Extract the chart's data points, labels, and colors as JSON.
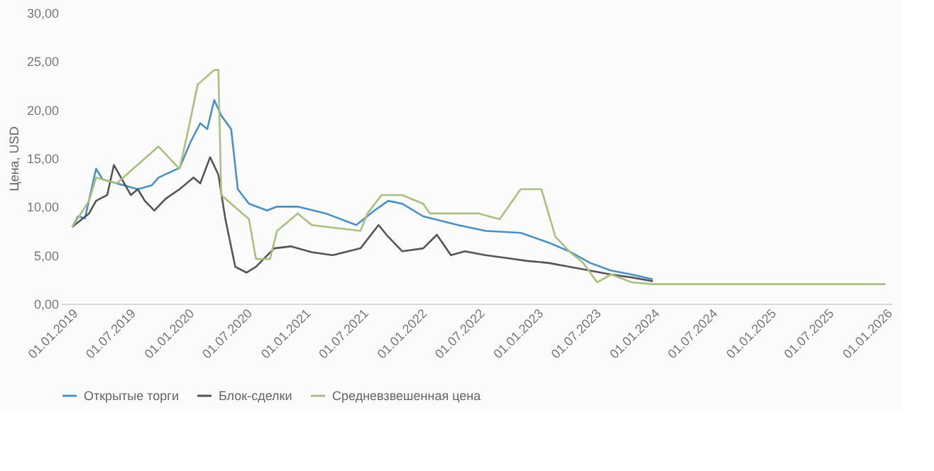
{
  "chart_data": {
    "type": "line",
    "ylabel": "Цена, USD",
    "xlim": [
      "2018-12-01",
      "2026-01-20"
    ],
    "xticks": [
      {
        "value": "2019-01-01",
        "label": "01.01.2019"
      },
      {
        "value": "2019-07-01",
        "label": "01.07.2019"
      },
      {
        "value": "2020-01-01",
        "label": "01.01.2020"
      },
      {
        "value": "2020-07-01",
        "label": "01.07.2020"
      },
      {
        "value": "2021-01-01",
        "label": "01.01.2021"
      },
      {
        "value": "2021-07-01",
        "label": "01.07.2021"
      },
      {
        "value": "2022-01-01",
        "label": "01.01.2022"
      },
      {
        "value": "2022-07-01",
        "label": "01.07.2022"
      },
      {
        "value": "2023-01-01",
        "label": "01.01.2023"
      },
      {
        "value": "2023-07-01",
        "label": "01.07.2023"
      },
      {
        "value": "2024-01-01",
        "label": "01.01.2024"
      },
      {
        "value": "2024-07-01",
        "label": "01.07.2024"
      },
      {
        "value": "2025-01-01",
        "label": "01.01.2025"
      },
      {
        "value": "2025-07-01",
        "label": "01.07.2025"
      },
      {
        "value": "2026-01-01",
        "label": "01.01.2026"
      }
    ],
    "ylim": [
      0,
      30
    ],
    "yticks": [
      {
        "value": 0,
        "label": "0,00"
      },
      {
        "value": 5,
        "label": "5,00"
      },
      {
        "value": 10,
        "label": "10,00"
      },
      {
        "value": 15,
        "label": "15,00"
      },
      {
        "value": 20,
        "label": "20,00"
      },
      {
        "value": 25,
        "label": "25,00"
      },
      {
        "value": 30,
        "label": "30,00"
      }
    ],
    "grid": false,
    "legend": "bottom",
    "marker": "none",
    "line_style": "solid",
    "series": [
      {
        "name": "Открытые торги",
        "color": "#4a90c4",
        "x": [
          "2019-01-05",
          "2019-01-23",
          "2019-02-14",
          "2019-03-21",
          "2019-04-11",
          "2019-05-25",
          "2019-06-16",
          "2019-07-30",
          "2019-09-12",
          "2019-10-03",
          "2019-12-08",
          "2020-01-12",
          "2020-02-11",
          "2020-03-04",
          "2020-03-26",
          "2020-04-17",
          "2020-05-18",
          "2020-06-08",
          "2020-07-13",
          "2020-09-08",
          "2020-10-09",
          "2020-12-13",
          "2021-03-11",
          "2021-06-15",
          "2021-08-11",
          "2021-09-23",
          "2021-11-06",
          "2022-01-11",
          "2022-04-30",
          "2022-07-26",
          "2022-11-13",
          "2023-02-08",
          "2023-04-14",
          "2023-06-19",
          "2023-08-24",
          "2023-10-28",
          "2024-01-02"
        ],
        "values": [
          7.9,
          9,
          8.8,
          13.9,
          12.8,
          12.4,
          12.2,
          11.8,
          12.2,
          13,
          14,
          16.7,
          18.6,
          18,
          21,
          19.4,
          18,
          11.8,
          10.3,
          9.6,
          10,
          10,
          9.3,
          8.1,
          9.6,
          10.6,
          10.3,
          9,
          8.1,
          7.5,
          7.3,
          6.3,
          5.4,
          4.2,
          3.4,
          3,
          2.5
        ]
      },
      {
        "name": "Блок-сделки",
        "color": "#555555",
        "x": [
          "2019-01-05",
          "2019-02-27",
          "2019-03-21",
          "2019-04-25",
          "2019-05-16",
          "2019-07-08",
          "2019-07-30",
          "2019-08-21",
          "2019-09-20",
          "2019-10-25",
          "2019-12-08",
          "2020-01-21",
          "2020-02-11",
          "2020-03-13",
          "2020-04-08",
          "2020-04-30",
          "2020-05-31",
          "2020-07-05",
          "2020-08-04",
          "2020-09-30",
          "2020-11-21",
          "2021-01-26",
          "2021-04-02",
          "2021-06-28",
          "2021-08-24",
          "2021-09-23",
          "2021-11-06",
          "2022-01-11",
          "2022-02-23",
          "2022-04-08",
          "2022-05-22",
          "2022-07-26",
          "2022-09-30",
          "2022-12-04",
          "2023-02-08",
          "2023-04-14",
          "2023-06-19",
          "2023-08-24",
          "2023-10-28",
          "2024-01-02"
        ],
        "values": [
          7.9,
          9.3,
          10.6,
          11.2,
          14.3,
          11.2,
          11.8,
          10.6,
          9.6,
          10.8,
          11.8,
          13,
          12.4,
          15.1,
          13.3,
          8.7,
          3.8,
          3.2,
          3.8,
          5.7,
          5.9,
          5.3,
          5,
          5.7,
          8.1,
          6.9,
          5.4,
          5.7,
          7.1,
          5,
          5.4,
          5,
          4.7,
          4.4,
          4.2,
          3.8,
          3.4,
          3,
          2.7,
          2.3
        ]
      },
      {
        "name": "Средневзвешенная цена",
        "color": "#a8c080",
        "x": [
          "2019-01-05",
          "2019-02-27",
          "2019-03-21",
          "2019-05-25",
          "2019-07-08",
          "2019-10-03",
          "2019-12-08",
          "2020-01-03",
          "2020-02-03",
          "2020-03-26",
          "2020-04-08",
          "2020-04-17",
          "2020-07-13",
          "2020-08-04",
          "2020-09-17",
          "2020-10-09",
          "2020-12-13",
          "2021-01-26",
          "2021-06-28",
          "2021-07-20",
          "2021-09-02",
          "2021-11-06",
          "2022-01-11",
          "2022-02-01",
          "2022-07-04",
          "2022-09-08",
          "2022-11-13",
          "2023-01-17",
          "2023-03-02",
          "2023-04-14",
          "2023-05-28",
          "2023-07-11",
          "2023-08-24",
          "2023-10-28",
          "2024-01-02",
          "2026-01-01"
        ],
        "values": [
          7.9,
          10.6,
          13,
          12.4,
          13.7,
          16.2,
          13.9,
          17.7,
          22.6,
          24.1,
          24.1,
          11.2,
          8.7,
          4.6,
          4.6,
          7.5,
          9.3,
          8.1,
          7.5,
          9.3,
          11.2,
          11.2,
          10.3,
          9.3,
          9.3,
          8.7,
          11.8,
          11.8,
          6.9,
          5.4,
          4.2,
          2.2,
          3,
          2.2,
          2,
          2
        ]
      }
    ]
  }
}
